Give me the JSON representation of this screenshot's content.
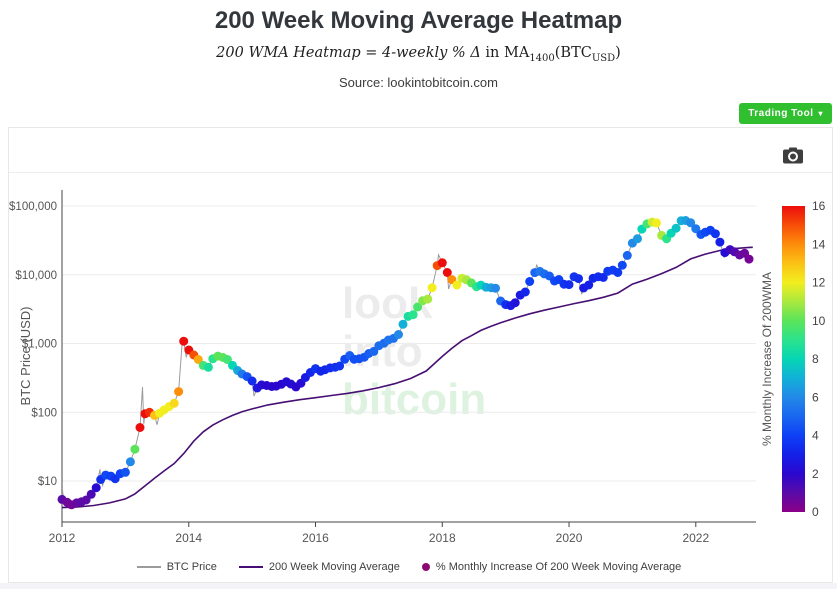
{
  "header": {
    "title": "200 Week Moving Average Heatmap",
    "formula": {
      "italic_part": "200 WMA Heatmap = 4-weekly % Δ",
      "roman1": " in MA",
      "sub1": "1400",
      "roman2": "(BTC",
      "sub2": "USD",
      "roman3": ")"
    },
    "source": "Source: lookintobitcoin.com",
    "trading_tool_label": "Trading Tool",
    "caret_icon": "▾"
  },
  "watermark": {
    "line1": "look",
    "line2": "into",
    "line3": "bitcoin"
  },
  "chart_data": {
    "type": "scatter",
    "title": "200 Week Moving Average Heatmap",
    "xlabel": "",
    "ylabel": "BTC Price (USD)",
    "yscale": "log",
    "xlim": [
      2012,
      2022.95
    ],
    "ylim": [
      2.5,
      170000
    ],
    "grid": "horizontal",
    "x_ticks": [
      {
        "label": "2012",
        "v": 2012
      },
      {
        "label": "2014",
        "v": 2014
      },
      {
        "label": "2016",
        "v": 2016
      },
      {
        "label": "2018",
        "v": 2018
      },
      {
        "label": "2020",
        "v": 2020
      },
      {
        "label": "2022",
        "v": 2022
      }
    ],
    "y_ticks": [
      {
        "label": "$10",
        "v": 10
      },
      {
        "label": "$100",
        "v": 100
      },
      {
        "label": "$1,000",
        "v": 1000
      },
      {
        "label": "$10,000",
        "v": 10000
      },
      {
        "label": "$100,000",
        "v": 100000
      }
    ],
    "colorbar": {
      "title": "% Monthly Increase Of 200WMA",
      "min": 0,
      "max": 16,
      "ticks": [
        0,
        2,
        4,
        6,
        8,
        10,
        12,
        14,
        16
      ],
      "stops": [
        [
          0,
          "#8b0087"
        ],
        [
          1,
          "#5a0ba8"
        ],
        [
          2,
          "#2b07ce"
        ],
        [
          3,
          "#1420e8"
        ],
        [
          4,
          "#0e41f5"
        ],
        [
          5,
          "#1a66f0"
        ],
        [
          6,
          "#2389e8"
        ],
        [
          7,
          "#12b0d8"
        ],
        [
          8,
          "#06d6b4"
        ],
        [
          9,
          "#2be38c"
        ],
        [
          10,
          "#5be45a"
        ],
        [
          11,
          "#a9e93e"
        ],
        [
          12,
          "#f2ee1f"
        ],
        [
          13,
          "#fbc215"
        ],
        [
          14,
          "#fd8d0b"
        ],
        [
          15,
          "#f74e07"
        ],
        [
          16,
          "#ec0d0d"
        ]
      ]
    },
    "legend": [
      {
        "type": "line",
        "color": "#9b9b9b",
        "label": "BTC Price"
      },
      {
        "type": "line",
        "color": "#470f73",
        "label": "200 Week Moving Average"
      },
      {
        "type": "dot",
        "color": "#8a0b70",
        "label": "% Monthly Increase Of 200 Week Moving Average"
      }
    ],
    "series_meta": {
      "dots_format": "[decimal_year, btc_price_usd, pct_monthly_increase_of_200wma]",
      "lines_format": "[decimal_year, btc_price_usd]"
    },
    "dots": [
      [
        2012.0,
        5.4,
        1.0
      ],
      [
        2012.08,
        4.9,
        0.6
      ],
      [
        2012.15,
        4.5,
        0.5
      ],
      [
        2012.23,
        4.8,
        0.8
      ],
      [
        2012.31,
        5.0,
        1.0
      ],
      [
        2012.38,
        5.3,
        1.0
      ],
      [
        2012.46,
        6.4,
        1.3
      ],
      [
        2012.54,
        8.0,
        2.2
      ],
      [
        2012.61,
        10.5,
        3.5
      ],
      [
        2012.69,
        12.2,
        4.2
      ],
      [
        2012.77,
        11.8,
        4.0
      ],
      [
        2012.84,
        10.8,
        3.6
      ],
      [
        2012.92,
        12.8,
        4.0
      ],
      [
        2013.0,
        13.4,
        4.5
      ],
      [
        2013.08,
        19,
        6
      ],
      [
        2013.15,
        29,
        10
      ],
      [
        2013.23,
        60,
        16
      ],
      [
        2013.31,
        95,
        16
      ],
      [
        2013.38,
        100,
        15.5
      ],
      [
        2013.46,
        90,
        13
      ],
      [
        2013.54,
        97,
        12
      ],
      [
        2013.61,
        108,
        12
      ],
      [
        2013.69,
        121,
        12
      ],
      [
        2013.77,
        135,
        12.5
      ],
      [
        2013.84,
        200,
        14
      ],
      [
        2013.92,
        1080,
        16
      ],
      [
        2014.0,
        805,
        16
      ],
      [
        2014.08,
        680,
        15
      ],
      [
        2014.15,
        585,
        13.5
      ],
      [
        2014.23,
        480,
        9.5
      ],
      [
        2014.31,
        450,
        8.5
      ],
      [
        2014.38,
        600,
        9
      ],
      [
        2014.46,
        655,
        10
      ],
      [
        2014.54,
        625,
        10
      ],
      [
        2014.61,
        585,
        9.5
      ],
      [
        2014.69,
        480,
        8
      ],
      [
        2014.77,
        405,
        6.8
      ],
      [
        2014.84,
        360,
        5.5
      ],
      [
        2014.92,
        330,
        4.5
      ],
      [
        2015.0,
        285,
        3.4
      ],
      [
        2015.08,
        225,
        2.6
      ],
      [
        2015.15,
        250,
        2.2
      ],
      [
        2015.23,
        245,
        2.0
      ],
      [
        2015.31,
        237,
        2.0
      ],
      [
        2015.38,
        240,
        2.0
      ],
      [
        2015.46,
        255,
        2.0
      ],
      [
        2015.54,
        277,
        2.2
      ],
      [
        2015.61,
        258,
        2.2
      ],
      [
        2015.69,
        234,
        2.0
      ],
      [
        2015.77,
        265,
        2.2
      ],
      [
        2015.84,
        320,
        2.8
      ],
      [
        2015.92,
        378,
        3.2
      ],
      [
        2016.0,
        432,
        3.6
      ],
      [
        2016.08,
        395,
        3.2
      ],
      [
        2016.15,
        416,
        3.2
      ],
      [
        2016.23,
        442,
        3.4
      ],
      [
        2016.31,
        452,
        3.5
      ],
      [
        2016.38,
        470,
        3.6
      ],
      [
        2016.46,
        590,
        4.2
      ],
      [
        2016.54,
        668,
        4.8
      ],
      [
        2016.61,
        590,
        4.4
      ],
      [
        2016.69,
        602,
        4.4
      ],
      [
        2016.77,
        632,
        4.5
      ],
      [
        2016.84,
        716,
        4.8
      ],
      [
        2016.92,
        768,
        5.0
      ],
      [
        2017.0,
        930,
        5.2
      ],
      [
        2017.08,
        1010,
        5.2
      ],
      [
        2017.15,
        1125,
        5.4
      ],
      [
        2017.23,
        1185,
        5.4
      ],
      [
        2017.31,
        1350,
        6.0
      ],
      [
        2017.38,
        1900,
        7.0
      ],
      [
        2017.46,
        2480,
        8.5
      ],
      [
        2017.54,
        2620,
        9.0
      ],
      [
        2017.61,
        3400,
        9.6
      ],
      [
        2017.69,
        4180,
        10.5
      ],
      [
        2017.77,
        4420,
        11.0
      ],
      [
        2017.84,
        6480,
        12.0
      ],
      [
        2017.92,
        13600,
        15.0
      ],
      [
        2018.0,
        14900,
        16
      ],
      [
        2018.08,
        10800,
        16
      ],
      [
        2018.15,
        8500,
        14
      ],
      [
        2018.23,
        7100,
        12
      ],
      [
        2018.31,
        8900,
        11.5
      ],
      [
        2018.38,
        8450,
        11
      ],
      [
        2018.46,
        7600,
        10
      ],
      [
        2018.54,
        6700,
        9
      ],
      [
        2018.61,
        7080,
        8
      ],
      [
        2018.69,
        6580,
        7
      ],
      [
        2018.77,
        6480,
        6.5
      ],
      [
        2018.84,
        6380,
        6
      ],
      [
        2018.92,
        4150,
        5
      ],
      [
        2019.0,
        3680,
        3.4
      ],
      [
        2019.08,
        3560,
        2.8
      ],
      [
        2019.15,
        3920,
        2.5
      ],
      [
        2019.23,
        5050,
        2.8
      ],
      [
        2019.31,
        5620,
        3.2
      ],
      [
        2019.38,
        7980,
        4.0
      ],
      [
        2019.46,
        10750,
        5.0
      ],
      [
        2019.54,
        11200,
        5.5
      ],
      [
        2019.61,
        10280,
        5.2
      ],
      [
        2019.69,
        9580,
        4.8
      ],
      [
        2019.77,
        8120,
        4.2
      ],
      [
        2019.84,
        8520,
        4.0
      ],
      [
        2019.92,
        7280,
        3.6
      ],
      [
        2020.0,
        7200,
        3.4
      ],
      [
        2020.08,
        9380,
        3.6
      ],
      [
        2020.15,
        8800,
        3.4
      ],
      [
        2020.23,
        6420,
        2.8
      ],
      [
        2020.31,
        7090,
        3.0
      ],
      [
        2020.38,
        8870,
        3.2
      ],
      [
        2020.46,
        9380,
        3.4
      ],
      [
        2020.54,
        9150,
        3.3
      ],
      [
        2020.61,
        11230,
        3.8
      ],
      [
        2020.69,
        11680,
        3.9
      ],
      [
        2020.77,
        10780,
        3.8
      ],
      [
        2020.84,
        13780,
        4.2
      ],
      [
        2020.92,
        19150,
        5.0
      ],
      [
        2021.0,
        28900,
        6.0
      ],
      [
        2021.08,
        33500,
        6.5
      ],
      [
        2021.15,
        46200,
        8.0
      ],
      [
        2021.23,
        55000,
        9.5
      ],
      [
        2021.31,
        58300,
        11.5
      ],
      [
        2021.38,
        56800,
        12.0
      ],
      [
        2021.46,
        37300,
        11.0
      ],
      [
        2021.54,
        33500,
        9.0
      ],
      [
        2021.61,
        40200,
        8.0
      ],
      [
        2021.69,
        47600,
        7.5
      ],
      [
        2021.77,
        61200,
        7.0
      ],
      [
        2021.84,
        61500,
        6.5
      ],
      [
        2021.92,
        56900,
        6.0
      ],
      [
        2022.0,
        46800,
        5.5
      ],
      [
        2022.08,
        38500,
        4.6
      ],
      [
        2022.15,
        41600,
        4.2
      ],
      [
        2022.23,
        44500,
        4.0
      ],
      [
        2022.31,
        39600,
        3.6
      ],
      [
        2022.38,
        29800,
        3.0
      ],
      [
        2022.46,
        21000,
        2.2
      ],
      [
        2022.54,
        23200,
        1.6
      ],
      [
        2022.61,
        21600,
        1.2
      ],
      [
        2022.69,
        19400,
        0.8
      ],
      [
        2022.77,
        20500,
        0.6
      ],
      [
        2022.84,
        16900,
        0.4
      ]
    ],
    "price_extra": [
      [
        2012.01,
        7.2
      ],
      [
        2012.03,
        4.9
      ],
      [
        2012.6,
        14.8
      ],
      [
        2012.64,
        8.6
      ],
      [
        2013.27,
        233
      ],
      [
        2013.29,
        68
      ],
      [
        2013.5,
        66
      ],
      [
        2013.9,
        1150
      ],
      [
        2013.96,
        640
      ],
      [
        2015.03,
        172
      ],
      [
        2017.94,
        19500
      ],
      [
        2018.1,
        6200
      ],
      [
        2019.49,
        13800
      ],
      [
        2020.2,
        5200
      ],
      [
        2021.33,
        64400
      ],
      [
        2021.56,
        29900
      ],
      [
        2021.86,
        67500
      ],
      [
        2022.45,
        17700
      ]
    ],
    "wma_line": [
      [
        2012.0,
        4.1
      ],
      [
        2012.25,
        4.2
      ],
      [
        2012.5,
        4.4
      ],
      [
        2012.75,
        4.8
      ],
      [
        2013.0,
        5.5
      ],
      [
        2013.15,
        6.5
      ],
      [
        2013.31,
        8.5
      ],
      [
        2013.46,
        11
      ],
      [
        2013.61,
        14
      ],
      [
        2013.77,
        18
      ],
      [
        2013.92,
        25
      ],
      [
        2014.08,
        38
      ],
      [
        2014.23,
        52
      ],
      [
        2014.38,
        65
      ],
      [
        2014.54,
        78
      ],
      [
        2014.69,
        90
      ],
      [
        2014.84,
        102
      ],
      [
        2015.0,
        112
      ],
      [
        2015.25,
        128
      ],
      [
        2015.5,
        140
      ],
      [
        2015.75,
        152
      ],
      [
        2016.0,
        163
      ],
      [
        2016.25,
        175
      ],
      [
        2016.5,
        188
      ],
      [
        2016.75,
        205
      ],
      [
        2017.0,
        228
      ],
      [
        2017.25,
        260
      ],
      [
        2017.5,
        310
      ],
      [
        2017.75,
        400
      ],
      [
        2018.0,
        650
      ],
      [
        2018.15,
        850
      ],
      [
        2018.31,
        1100
      ],
      [
        2018.46,
        1300
      ],
      [
        2018.61,
        1550
      ],
      [
        2018.77,
        1780
      ],
      [
        2018.92,
        2000
      ],
      [
        2019.15,
        2350
      ],
      [
        2019.38,
        2700
      ],
      [
        2019.61,
        3050
      ],
      [
        2019.84,
        3400
      ],
      [
        2020.08,
        3800
      ],
      [
        2020.31,
        4200
      ],
      [
        2020.54,
        4700
      ],
      [
        2020.77,
        5400
      ],
      [
        2021.0,
        7300
      ],
      [
        2021.23,
        8600
      ],
      [
        2021.46,
        10400
      ],
      [
        2021.69,
        12800
      ],
      [
        2021.92,
        17000
      ],
      [
        2022.15,
        20000
      ],
      [
        2022.38,
        22500
      ],
      [
        2022.61,
        24000
      ],
      [
        2022.84,
        25000
      ],
      [
        2022.9,
        25100
      ]
    ]
  }
}
